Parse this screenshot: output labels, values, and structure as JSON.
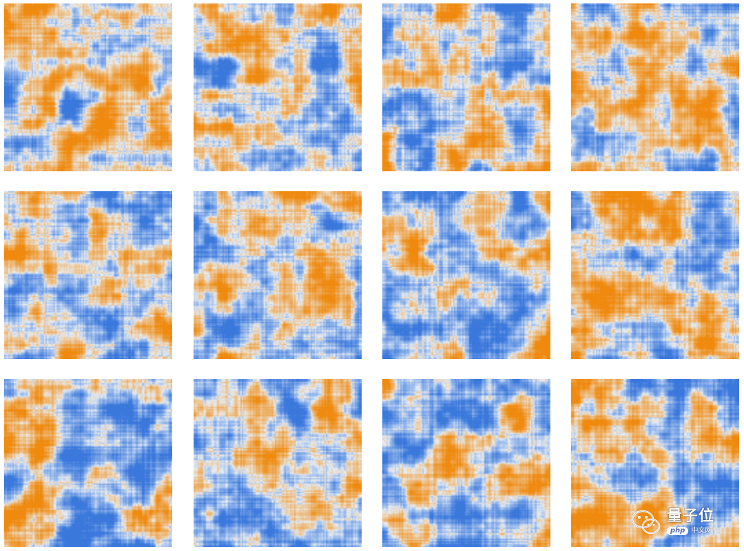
{
  "grid": {
    "rows": 3,
    "cols": 4,
    "colors": {
      "blue": "#3a78dc",
      "orange": "#ef8a0f",
      "light": "#eaf1f8"
    }
  },
  "watermark": {
    "icon": "wechat-icon",
    "brand": "量子位",
    "php_label": "php",
    "site_suffix": "中文网"
  }
}
